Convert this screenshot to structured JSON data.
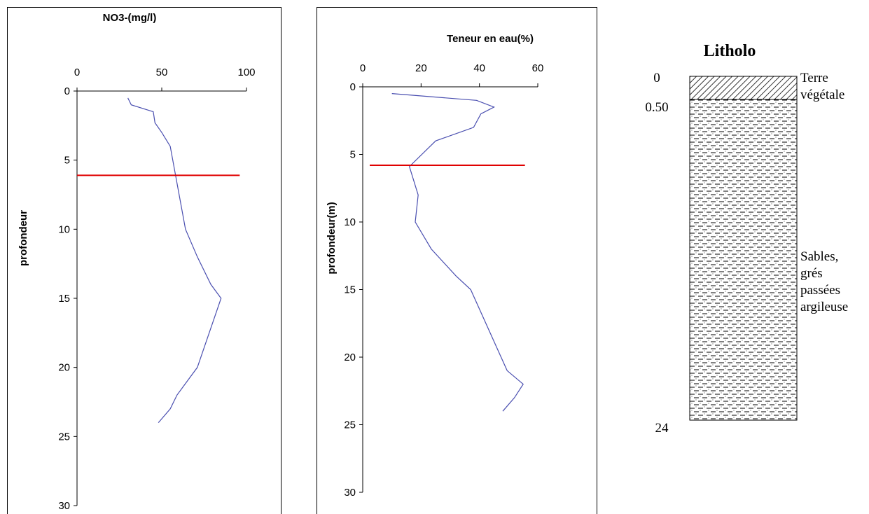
{
  "chart_data": [
    {
      "type": "line",
      "title": "NO3-(mg/l)",
      "y_label": "profondeur",
      "x": [
        30,
        32,
        45,
        46,
        50,
        55,
        64,
        71,
        79,
        85,
        71,
        65,
        59,
        55,
        48
      ],
      "values": [
        0.5,
        1,
        1.5,
        2.3,
        3,
        4,
        10,
        12,
        14,
        15,
        20,
        21,
        22,
        23,
        24
      ],
      "color": "#4a4fb0",
      "xlim": [
        0,
        100
      ],
      "xticks": [
        0,
        50,
        100
      ],
      "ylim": [
        0,
        30
      ],
      "yticks": [
        0,
        5,
        10,
        15,
        20,
        25,
        30
      ],
      "y_inverted": true,
      "reference_line": {
        "y": 6.1,
        "x": [
          0,
          96
        ],
        "color": "#e00000"
      }
    },
    {
      "type": "line",
      "title": "Teneur en eau(%)",
      "y_label": "profondeur(m)",
      "x": [
        10,
        39,
        45,
        40.5,
        38,
        25,
        16,
        19,
        18,
        23.5,
        32,
        37,
        49.5,
        55,
        52,
        48
      ],
      "values": [
        0.5,
        1,
        1.5,
        2,
        3,
        4,
        5.9,
        8,
        10,
        12,
        14,
        15,
        21,
        22,
        23,
        24
      ],
      "color": "#4a4fb0",
      "xlim": [
        0,
        60
      ],
      "xticks": [
        0,
        20,
        40,
        60
      ],
      "ylim": [
        0,
        30
      ],
      "yticks": [
        0,
        5,
        10,
        15,
        20,
        25,
        30
      ],
      "y_inverted": true,
      "reference_line": {
        "y": 5.8,
        "x": [
          2.4,
          55.6
        ],
        "color": "#e00000"
      }
    }
  ],
  "lithology": {
    "title": "Litholo",
    "depth_labels": [
      "0",
      "0.50",
      "24"
    ],
    "layers": [
      {
        "label_lines": [
          "Terre",
          "végétale"
        ]
      },
      {
        "label_lines": [
          "Sables,",
          "grés",
          "passées",
          "argileuse"
        ]
      }
    ]
  }
}
